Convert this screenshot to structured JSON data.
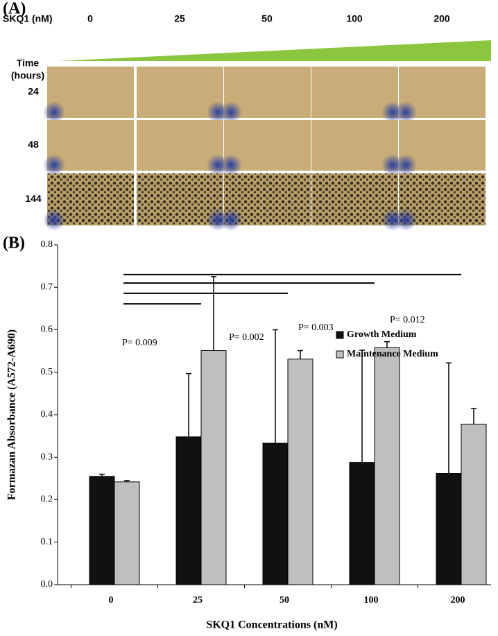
{
  "panel_a": {
    "label": "(A)",
    "concentration_label": "SKQ1 (nM)",
    "concentrations": [
      "0",
      "25",
      "50",
      "100",
      "200"
    ],
    "time_label": [
      "Time",
      "(hours)"
    ],
    "times": [
      "24",
      "48",
      "144"
    ]
  },
  "chart_data": {
    "type": "bar",
    "panel_label": "(B)",
    "x_label": "SKQ1 Concentrations (nM)",
    "y_label": "Formazan Absorbance (A572-A690)",
    "categories": [
      "0",
      "25",
      "50",
      "100",
      "200"
    ],
    "series": [
      {
        "name": "Growth Medium",
        "color": "#111111",
        "values": [
          0.255,
          0.348,
          0.333,
          0.288,
          0.262
        ],
        "errors": [
          0.005,
          0.149,
          0.267,
          0.264,
          0.26
        ]
      },
      {
        "name": "Maintenance Medium",
        "color": "#bfbfbf",
        "values": [
          0.242,
          0.551,
          0.531,
          0.558,
          0.378
        ],
        "errors": [
          0.003,
          0.174,
          0.02,
          0.014,
          0.037
        ]
      }
    ],
    "ylim": [
      0,
      0.8
    ],
    "yticks": [
      {
        "value": 0,
        "label": "0.0"
      },
      0.1,
      0.2,
      0.3,
      0.4,
      0.5,
      0.6,
      0.7,
      0.8
    ],
    "annotations": [
      {
        "text": "P= 0.009",
        "y": 0.661
      },
      {
        "text": "P= 0.002",
        "y": 0.686
      },
      {
        "text": "P= 0.003",
        "y": 0.71
      },
      {
        "text": "P= 0.012",
        "y": 0.73
      }
    ]
  }
}
